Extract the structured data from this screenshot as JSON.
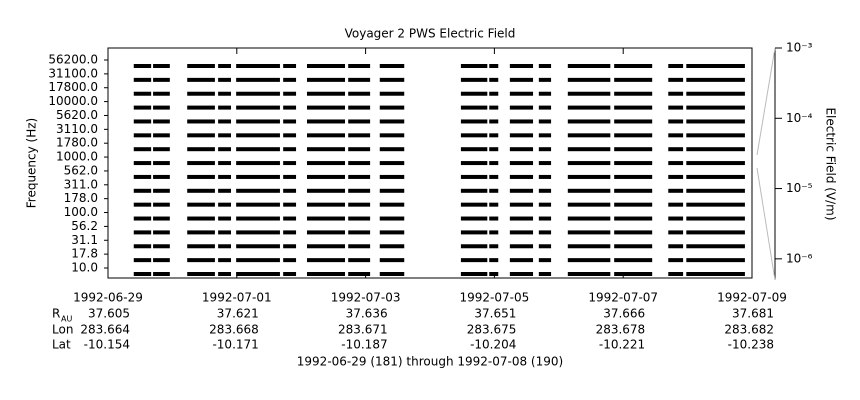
{
  "chart_data": {
    "type": "multichannel",
    "title": "Voyager 2 PWS Electric Field",
    "ylabel": "Frequency (Hz)",
    "y2label": "Electric Field (V/m)",
    "xlabel": "1992-06-29 (181) through 1992-07-08 (190)",
    "channels": [
      "56200.0",
      "31100.0",
      "17800.0",
      "10000.0",
      "5620.0",
      "3110.0",
      "1780.0",
      "1000.0",
      "562.0",
      "311.0",
      "178.0",
      "100.0",
      "56.2",
      "31.1",
      "17.8",
      "10.0"
    ],
    "xlim": [
      181,
      191
    ],
    "xticks": [
      {
        "value": 181,
        "label": "1992-06-29"
      },
      {
        "value": 183,
        "label": "1992-07-01"
      },
      {
        "value": 185,
        "label": "1992-07-03"
      },
      {
        "value": 187,
        "label": "1992-07-05"
      },
      {
        "value": 189,
        "label": "1992-07-07"
      },
      {
        "value": 191,
        "label": "1992-07-09"
      }
    ],
    "intervals": [
      [
        181.4,
        181.67
      ],
      [
        181.7,
        181.96
      ],
      [
        182.23,
        182.66
      ],
      [
        182.71,
        182.91
      ],
      [
        182.99,
        183.67
      ],
      [
        183.72,
        183.92
      ],
      [
        184.09,
        184.68
      ],
      [
        184.73,
        185.07
      ],
      [
        185.22,
        185.6
      ],
      [
        186.48,
        186.89
      ],
      [
        186.92,
        187.06
      ],
      [
        187.24,
        187.6
      ],
      [
        187.69,
        187.88
      ],
      [
        188.14,
        188.8
      ],
      [
        188.86,
        189.45
      ],
      [
        189.7,
        189.93
      ],
      [
        189.98,
        190.89
      ]
    ],
    "color": "#000000",
    "y2lim": [
      5e-07,
      0.001
    ],
    "y2log": true,
    "y2ticks": [
      {
        "value": 0.001,
        "label": "10⁻³"
      },
      {
        "value": 0.0001,
        "label": "10⁻⁴"
      },
      {
        "value": 1e-05,
        "label": "10⁻⁵"
      },
      {
        "value": 1e-06,
        "label": "10⁻⁶"
      }
    ],
    "ephemeris": [
      {
        "label": "R",
        "sub": "AU",
        "values": [
          37.605,
          37.621,
          37.636,
          37.651,
          37.666,
          37.681
        ]
      },
      {
        "label": "Lon",
        "values": [
          283.664,
          283.668,
          283.671,
          283.675,
          283.678,
          283.682
        ]
      },
      {
        "label": "Lat",
        "values": [
          -10.154,
          -10.171,
          -10.187,
          -10.204,
          -10.221,
          -10.238
        ]
      }
    ]
  }
}
